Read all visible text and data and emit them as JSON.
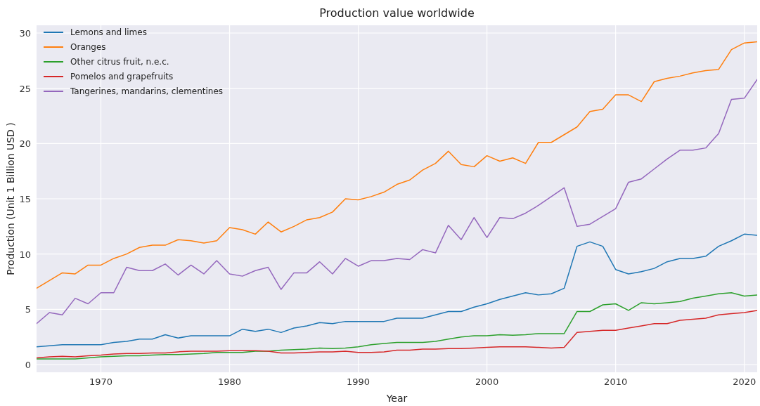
{
  "chart_data": {
    "type": "line",
    "title": "Production value worldwide",
    "xlabel": "Year",
    "ylabel": "Production (Unit 1 Billion USD )",
    "x": [
      1965,
      1966,
      1967,
      1968,
      1969,
      1970,
      1971,
      1972,
      1973,
      1974,
      1975,
      1976,
      1977,
      1978,
      1979,
      1980,
      1981,
      1982,
      1983,
      1984,
      1985,
      1986,
      1987,
      1988,
      1989,
      1990,
      1991,
      1992,
      1993,
      1994,
      1995,
      1996,
      1997,
      1998,
      1999,
      2000,
      2001,
      2002,
      2003,
      2004,
      2005,
      2006,
      2007,
      2008,
      2009,
      2010,
      2011,
      2012,
      2013,
      2014,
      2015,
      2016,
      2017,
      2018,
      2019,
      2020,
      2021
    ],
    "series": [
      {
        "name": "Lemons and limes",
        "color": "#1f77b4",
        "values": [
          1.6,
          1.7,
          1.8,
          1.8,
          1.8,
          1.8,
          2.0,
          2.1,
          2.3,
          2.3,
          2.7,
          2.4,
          2.6,
          2.6,
          2.6,
          2.6,
          3.2,
          3.0,
          3.2,
          2.9,
          3.3,
          3.5,
          3.8,
          3.7,
          3.9,
          3.9,
          3.9,
          3.9,
          4.2,
          4.2,
          4.2,
          4.5,
          4.8,
          4.8,
          5.2,
          5.5,
          5.9,
          6.2,
          6.5,
          6.3,
          6.4,
          6.9,
          10.7,
          11.1,
          10.7,
          8.6,
          8.2,
          8.4,
          8.7,
          9.3,
          9.6,
          9.6,
          9.8,
          10.7,
          11.2,
          11.8,
          11.7
        ]
      },
      {
        "name": "Oranges",
        "color": "#ff7f0e",
        "values": [
          6.9,
          7.6,
          8.3,
          8.2,
          9.0,
          9.0,
          9.6,
          10.0,
          10.6,
          10.8,
          10.8,
          11.3,
          11.2,
          11.0,
          11.2,
          12.4,
          12.2,
          11.8,
          12.9,
          12.0,
          12.5,
          13.1,
          13.3,
          13.8,
          15.0,
          14.9,
          15.2,
          15.6,
          16.3,
          16.7,
          17.6,
          18.2,
          19.3,
          18.1,
          17.9,
          18.9,
          18.4,
          18.7,
          18.2,
          20.1,
          20.1,
          20.8,
          21.5,
          22.9,
          23.1,
          24.4,
          24.4,
          23.8,
          25.6,
          25.9,
          26.1,
          26.4,
          26.6,
          26.7,
          28.5,
          29.1,
          29.2
        ]
      },
      {
        "name": "Other citrus fruit, n.e.c.",
        "color": "#2ca02c",
        "values": [
          0.5,
          0.5,
          0.5,
          0.5,
          0.6,
          0.7,
          0.75,
          0.8,
          0.8,
          0.85,
          0.9,
          0.9,
          0.95,
          1.0,
          1.1,
          1.1,
          1.1,
          1.2,
          1.2,
          1.3,
          1.35,
          1.4,
          1.5,
          1.45,
          1.5,
          1.6,
          1.8,
          1.9,
          2.0,
          2.0,
          2.0,
          2.1,
          2.3,
          2.5,
          2.6,
          2.6,
          2.7,
          2.65,
          2.7,
          2.8,
          2.8,
          2.8,
          4.8,
          4.8,
          5.4,
          5.5,
          4.9,
          5.6,
          5.5,
          5.6,
          5.7,
          6.0,
          6.2,
          6.4,
          6.5,
          6.2,
          6.3
        ]
      },
      {
        "name": "Pomelos and grapefruits",
        "color": "#d62728",
        "values": [
          0.6,
          0.7,
          0.75,
          0.7,
          0.8,
          0.85,
          0.95,
          1.0,
          1.0,
          1.05,
          1.05,
          1.15,
          1.2,
          1.2,
          1.2,
          1.25,
          1.25,
          1.25,
          1.2,
          1.05,
          1.05,
          1.1,
          1.15,
          1.15,
          1.2,
          1.1,
          1.1,
          1.15,
          1.3,
          1.3,
          1.4,
          1.4,
          1.45,
          1.45,
          1.5,
          1.55,
          1.6,
          1.6,
          1.6,
          1.55,
          1.5,
          1.55,
          2.9,
          3.0,
          3.1,
          3.1,
          3.3,
          3.5,
          3.7,
          3.7,
          4.0,
          4.1,
          4.2,
          4.5,
          4.6,
          4.7,
          4.9
        ]
      },
      {
        "name": "Tangerines, mandarins, clementines",
        "color": "#9467bd",
        "values": [
          3.7,
          4.7,
          4.5,
          6.0,
          5.5,
          6.5,
          6.5,
          8.8,
          8.5,
          8.5,
          9.1,
          8.1,
          9.0,
          8.2,
          9.4,
          8.2,
          8.0,
          8.5,
          8.8,
          6.8,
          8.3,
          8.3,
          9.3,
          8.2,
          9.6,
          8.9,
          9.4,
          9.4,
          9.6,
          9.5,
          10.4,
          10.1,
          12.6,
          11.3,
          13.3,
          11.5,
          13.3,
          13.2,
          13.7,
          14.4,
          15.2,
          16.0,
          12.5,
          12.7,
          13.4,
          14.1,
          16.5,
          16.8,
          17.7,
          18.6,
          19.4,
          19.4,
          19.6,
          20.9,
          24.0,
          24.1,
          25.8
        ]
      }
    ],
    "xlim": [
      1965,
      2021
    ],
    "xticks": [
      1970,
      1980,
      1990,
      2000,
      2010,
      2020
    ],
    "ylim": [
      -0.7,
      30.7
    ],
    "yticks": [
      0,
      5,
      10,
      15,
      20,
      25,
      30
    ],
    "grid": true,
    "legend": "top left",
    "line_style": "solid"
  }
}
